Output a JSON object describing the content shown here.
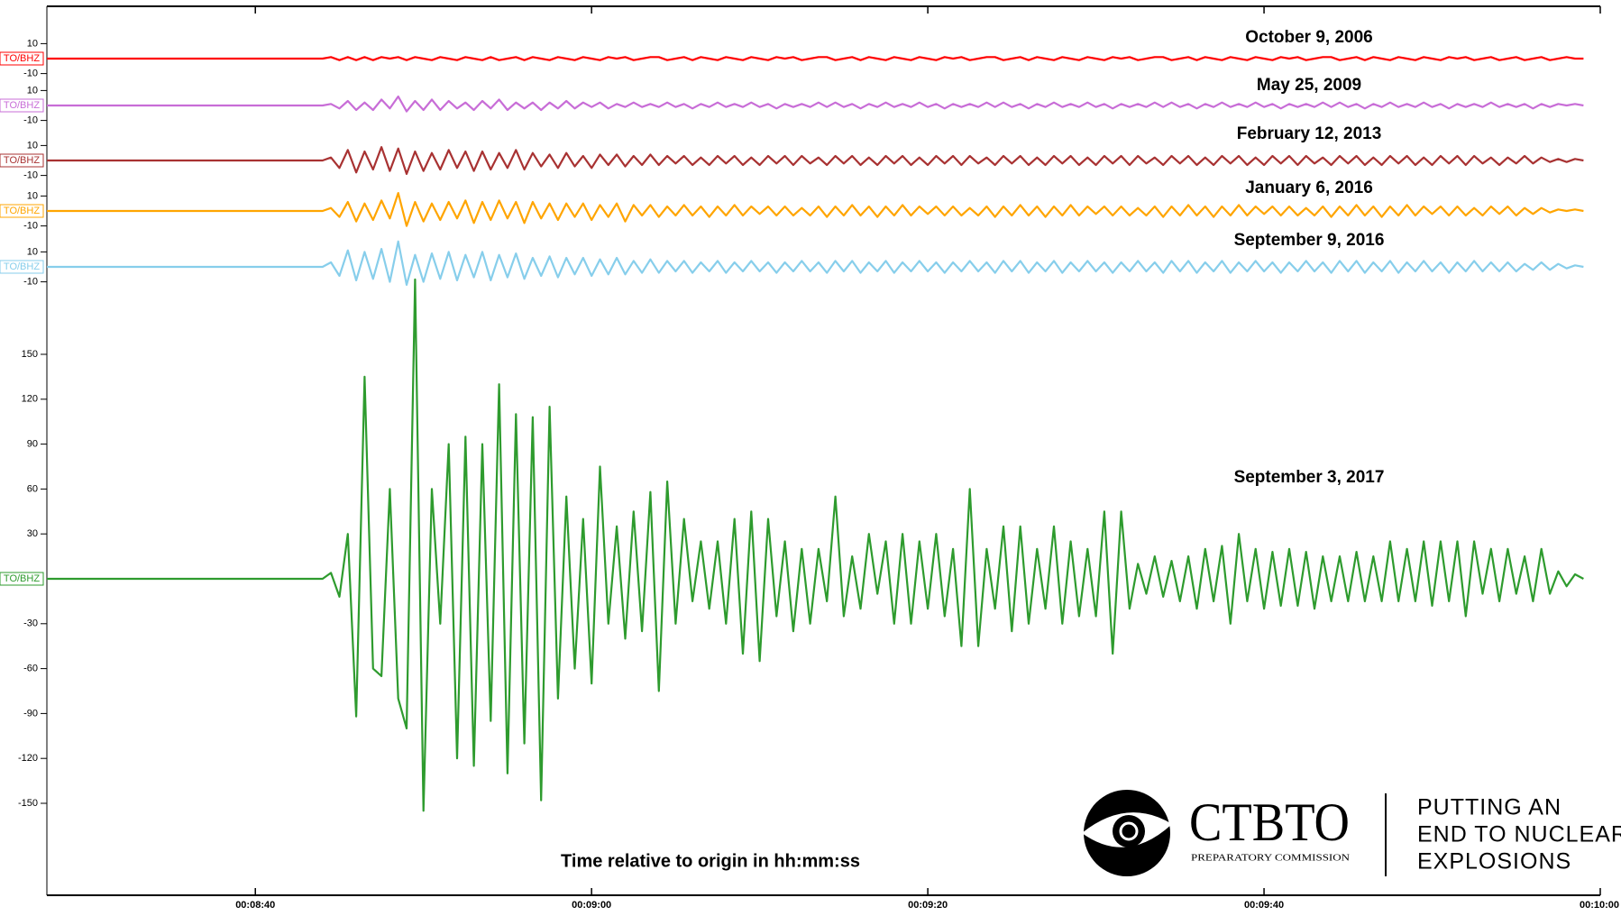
{
  "chart_data": {
    "type": "line",
    "xlabel": "Time relative to origin in hh:mm:ss",
    "xlim": [
      507.6,
      600
    ],
    "xticks": [
      {
        "value": 520,
        "label": "00:08:40"
      },
      {
        "value": 540,
        "label": "00:09:00"
      },
      {
        "value": 560,
        "label": "00:09:20"
      },
      {
        "value": 580,
        "label": "00:09:40"
      },
      {
        "value": 600,
        "label": "00:10:00"
      }
    ],
    "x": [
      507.6,
      523.5,
      524,
      524.5,
      525,
      525.5,
      526,
      526.5,
      527,
      527.5,
      528,
      528.5,
      529,
      529.5,
      530,
      530.5,
      531,
      531.5,
      532,
      532.5,
      533,
      533.5,
      534,
      534.5,
      535,
      535.5,
      536,
      536.5,
      537,
      537.5,
      538,
      538.5,
      539,
      539.5,
      540,
      540.5,
      541,
      541.5,
      542,
      542.5,
      543,
      543.5,
      544,
      544.5,
      545,
      545.5,
      546,
      546.5,
      547,
      547.5,
      548,
      548.5,
      549,
      549.5,
      550,
      550.5,
      551,
      551.5,
      552,
      552.5,
      553,
      553.5,
      554,
      554.5,
      555,
      555.5,
      556,
      556.5,
      557,
      557.5,
      558,
      558.5,
      559,
      559.5,
      560,
      560.5,
      561,
      561.5,
      562,
      562.5,
      563,
      563.5,
      564,
      564.5,
      565,
      565.5,
      566,
      566.5,
      567,
      567.5,
      568,
      568.5,
      569,
      569.5,
      570,
      570.5,
      571,
      571.5,
      572,
      572.5,
      573,
      573.5,
      574,
      574.5,
      575,
      575.5,
      576,
      576.5,
      577,
      577.5,
      578,
      578.5,
      579,
      579.5,
      580,
      580.5,
      581,
      581.5,
      582,
      582.5,
      583,
      583.5,
      584,
      584.5,
      585,
      585.5,
      586,
      586.5,
      587,
      587.5,
      588,
      588.5,
      589,
      589.5,
      590,
      590.5,
      591,
      591.5,
      592,
      592.5,
      593,
      593.5,
      594,
      594.5,
      595,
      595.5,
      596,
      596.5,
      597,
      597.5,
      598,
      598.5,
      599
    ],
    "series": [
      {
        "name": "October 9, 2006",
        "label": "TO/BHZ",
        "color": "#ff0000",
        "ylim": [
          -20,
          20
        ],
        "yticks": [
          -10,
          10
        ],
        "values": [
          0,
          0,
          0,
          1,
          -1,
          1,
          -1,
          1,
          -1,
          1,
          0,
          1,
          -1,
          1,
          0,
          -1,
          1,
          0,
          -1,
          1,
          0,
          -1,
          1,
          -1,
          0,
          1,
          -1,
          1,
          0,
          -1,
          1,
          0,
          -1,
          1,
          0,
          -1,
          1,
          0,
          1,
          -1,
          0,
          1,
          1,
          -1,
          0,
          1,
          -1,
          1,
          0,
          -1,
          1,
          0,
          -1,
          1,
          0,
          -1,
          1,
          0,
          1,
          -1,
          0,
          1,
          1,
          -1,
          0,
          1,
          -1,
          1,
          0,
          -1,
          1,
          0,
          -1,
          1,
          0,
          -1,
          1,
          0,
          1,
          -1,
          0,
          1,
          1,
          -1,
          0,
          1,
          -1,
          1,
          0,
          -1,
          1,
          0,
          -1,
          1,
          0,
          -1,
          1,
          0,
          1,
          -1,
          0,
          1,
          1,
          -1,
          0,
          1,
          -1,
          1,
          0,
          -1,
          1,
          0,
          -1,
          1,
          0,
          -1,
          1,
          0,
          1,
          -1,
          0,
          1,
          1,
          -1,
          0,
          1,
          -1,
          1,
          0,
          -1,
          1,
          0,
          -1,
          1,
          0,
          -1,
          1,
          0,
          1,
          -1,
          0,
          1,
          -1,
          0,
          1,
          -1,
          0,
          1,
          -1,
          0,
          1,
          0,
          0
        ]
      },
      {
        "name": "May 25, 2009",
        "label": "TO/BHZ",
        "color": "#c86dd7",
        "ylim": [
          -20,
          20
        ],
        "yticks": [
          -10,
          10
        ],
        "values": [
          0,
          0,
          0,
          1,
          -2,
          3,
          -3,
          2,
          -3,
          4,
          -2,
          6,
          -4,
          3,
          -3,
          4,
          -3,
          3,
          -2,
          2,
          -3,
          3,
          -2,
          4,
          -3,
          2,
          -2,
          2,
          -3,
          2,
          -2,
          3,
          -2,
          2,
          -1,
          2,
          -2,
          1,
          -1,
          2,
          -1,
          1,
          -1,
          2,
          -1,
          1,
          -2,
          1,
          -1,
          2,
          -1,
          1,
          -1,
          2,
          -1,
          1,
          -2,
          1,
          -1,
          1,
          -1,
          2,
          -1,
          2,
          -1,
          1,
          -2,
          1,
          -1,
          2,
          -1,
          1,
          -1,
          2,
          -1,
          1,
          -2,
          1,
          -1,
          1,
          -1,
          2,
          -1,
          2,
          -1,
          1,
          -2,
          1,
          -1,
          2,
          -1,
          1,
          -1,
          2,
          -1,
          1,
          -2,
          1,
          -1,
          1,
          -1,
          2,
          -1,
          2,
          -1,
          1,
          -2,
          1,
          -1,
          2,
          -1,
          1,
          -1,
          2,
          -1,
          1,
          -2,
          1,
          -1,
          1,
          -1,
          2,
          -1,
          2,
          -1,
          1,
          -2,
          1,
          -1,
          2,
          -1,
          1,
          -1,
          2,
          -1,
          1,
          -2,
          1,
          -1,
          1,
          -1,
          2,
          -1,
          1,
          -1,
          1,
          -2,
          1,
          -1,
          1,
          0,
          1,
          0
        ]
      },
      {
        "name": "February 12, 2013",
        "label": "TO/BHZ",
        "color": "#a83232",
        "ylim": [
          -20,
          20
        ],
        "yticks": [
          -10,
          10
        ],
        "values": [
          0,
          0,
          0,
          2,
          -5,
          7,
          -8,
          6,
          -6,
          9,
          -7,
          8,
          -9,
          6,
          -7,
          5,
          -6,
          7,
          -5,
          6,
          -7,
          6,
          -6,
          5,
          -5,
          7,
          -6,
          5,
          -4,
          4,
          -5,
          5,
          -4,
          3,
          -5,
          4,
          -3,
          4,
          -4,
          3,
          -3,
          4,
          -3,
          3,
          -2,
          3,
          -3,
          2,
          -3,
          3,
          -2,
          3,
          -3,
          2,
          -3,
          3,
          -2,
          3,
          -3,
          3,
          -2,
          2,
          -3,
          3,
          -2,
          3,
          -3,
          2,
          -3,
          3,
          -2,
          3,
          -3,
          2,
          -3,
          3,
          -2,
          3,
          -3,
          3,
          -2,
          2,
          -3,
          3,
          -2,
          3,
          -3,
          2,
          -3,
          3,
          -2,
          3,
          -3,
          2,
          -3,
          3,
          -2,
          3,
          -3,
          3,
          -2,
          2,
          -3,
          3,
          -2,
          3,
          -3,
          2,
          -3,
          3,
          -2,
          3,
          -3,
          2,
          -3,
          3,
          -2,
          3,
          -3,
          3,
          -2,
          2,
          -3,
          3,
          -2,
          3,
          -3,
          2,
          -3,
          3,
          -2,
          3,
          -3,
          2,
          -3,
          3,
          -2,
          3,
          -3,
          3,
          -2,
          2,
          -3,
          2,
          -2,
          3,
          -2,
          2,
          -1,
          1,
          -1,
          1,
          0
        ]
      },
      {
        "name": "January 6, 2016",
        "label": "TO/BHZ",
        "color": "#ffa500",
        "ylim": [
          -20,
          20
        ],
        "yticks": [
          -10,
          10
        ],
        "values": [
          0,
          0,
          0,
          2,
          -4,
          6,
          -7,
          5,
          -6,
          7,
          -5,
          12,
          -10,
          6,
          -7,
          5,
          -6,
          6,
          -5,
          7,
          -8,
          6,
          -6,
          7,
          -5,
          6,
          -8,
          6,
          -5,
          5,
          -6,
          5,
          -4,
          5,
          -6,
          4,
          -4,
          5,
          -7,
          4,
          -3,
          4,
          -4,
          3,
          -3,
          4,
          -3,
          3,
          -4,
          3,
          -3,
          4,
          -3,
          3,
          -2,
          3,
          -3,
          3,
          -3,
          2,
          -3,
          3,
          -4,
          3,
          -3,
          4,
          -3,
          3,
          -4,
          3,
          -3,
          4,
          -3,
          3,
          -2,
          3,
          -3,
          3,
          -3,
          2,
          -3,
          3,
          -4,
          3,
          -3,
          4,
          -3,
          3,
          -4,
          3,
          -3,
          4,
          -3,
          3,
          -2,
          3,
          -3,
          3,
          -3,
          2,
          -3,
          3,
          -4,
          3,
          -3,
          4,
          -3,
          3,
          -4,
          3,
          -3,
          4,
          -3,
          3,
          -2,
          3,
          -3,
          3,
          -3,
          2,
          -3,
          3,
          -4,
          3,
          -3,
          4,
          -3,
          3,
          -4,
          3,
          -3,
          4,
          -3,
          3,
          -2,
          3,
          -3,
          3,
          -3,
          2,
          -3,
          3,
          -2,
          3,
          -3,
          2,
          -2,
          2,
          -1,
          1,
          0,
          1,
          0
        ]
      },
      {
        "name": "September 9, 2016",
        "label": "TO/BHZ",
        "color": "#87ceeb",
        "ylim": [
          -20,
          20
        ],
        "yticks": [
          -10,
          10
        ],
        "values": [
          0,
          0,
          0,
          3,
          -6,
          11,
          -9,
          10,
          -8,
          12,
          -10,
          17,
          -12,
          8,
          -10,
          9,
          -8,
          10,
          -9,
          8,
          -7,
          10,
          -9,
          8,
          -7,
          9,
          -8,
          6,
          -6,
          7,
          -7,
          6,
          -5,
          6,
          -6,
          5,
          -5,
          6,
          -5,
          4,
          -4,
          5,
          -4,
          4,
          -3,
          4,
          -4,
          3,
          -3,
          4,
          -4,
          3,
          -3,
          4,
          -3,
          3,
          -4,
          3,
          -3,
          4,
          -3,
          3,
          -4,
          4,
          -3,
          4,
          -4,
          3,
          -3,
          4,
          -4,
          3,
          -3,
          4,
          -3,
          3,
          -4,
          3,
          -3,
          4,
          -3,
          3,
          -4,
          4,
          -3,
          4,
          -4,
          3,
          -3,
          4,
          -4,
          3,
          -3,
          4,
          -3,
          3,
          -4,
          3,
          -3,
          4,
          -3,
          3,
          -4,
          4,
          -3,
          4,
          -4,
          3,
          -3,
          4,
          -4,
          3,
          -3,
          4,
          -3,
          3,
          -4,
          3,
          -3,
          4,
          -3,
          3,
          -4,
          4,
          -3,
          4,
          -4,
          3,
          -3,
          4,
          -4,
          3,
          -3,
          4,
          -3,
          3,
          -4,
          3,
          -3,
          4,
          -3,
          3,
          -3,
          3,
          -3,
          2,
          -2,
          3,
          -2,
          2,
          -1,
          1,
          0
        ]
      },
      {
        "name": "September 3, 2017",
        "label": "TO/BHZ",
        "color": "#2e9b2e",
        "ylim": [
          -160,
          205
        ],
        "yticks": [
          -150,
          -120,
          -90,
          -60,
          -30,
          30,
          60,
          90,
          120,
          150
        ],
        "values": [
          0,
          0,
          0,
          4,
          -12,
          30,
          -92,
          135,
          -60,
          -65,
          60,
          -80,
          -100,
          200,
          -155,
          60,
          -30,
          90,
          -120,
          95,
          -125,
          90,
          -95,
          130,
          -130,
          110,
          -110,
          108,
          -148,
          115,
          -80,
          55,
          -60,
          40,
          -70,
          75,
          -30,
          35,
          -40,
          45,
          -35,
          58,
          -75,
          65,
          -30,
          40,
          -15,
          25,
          -20,
          25,
          -30,
          40,
          -50,
          45,
          -55,
          40,
          -25,
          25,
          -35,
          20,
          -30,
          20,
          -15,
          55,
          -25,
          15,
          -20,
          30,
          -10,
          25,
          -30,
          30,
          -30,
          25,
          -20,
          30,
          -25,
          20,
          -45,
          60,
          -45,
          20,
          -20,
          35,
          -35,
          35,
          -30,
          20,
          -20,
          35,
          -30,
          25,
          -25,
          20,
          -25,
          45,
          -50,
          45,
          -20,
          10,
          -10,
          15,
          -12,
          12,
          -15,
          15,
          -20,
          20,
          -15,
          22,
          -30,
          30,
          -15,
          20,
          -20,
          18,
          -18,
          20,
          -18,
          18,
          -20,
          15,
          -15,
          15,
          -15,
          18,
          -15,
          15,
          -15,
          25,
          -15,
          20,
          -15,
          25,
          -18,
          25,
          -15,
          25,
          -25,
          25,
          -10,
          20,
          -15,
          20,
          -10,
          15,
          -15,
          20,
          -10,
          5,
          -5,
          3,
          0
        ]
      }
    ]
  },
  "logo": {
    "name": "CTBTO",
    "subtitle": "PREPARATORY COMMISSION",
    "tagline": [
      "PUTTING AN",
      "END TO NUCLEAR",
      "EXPLOSIONS"
    ]
  }
}
